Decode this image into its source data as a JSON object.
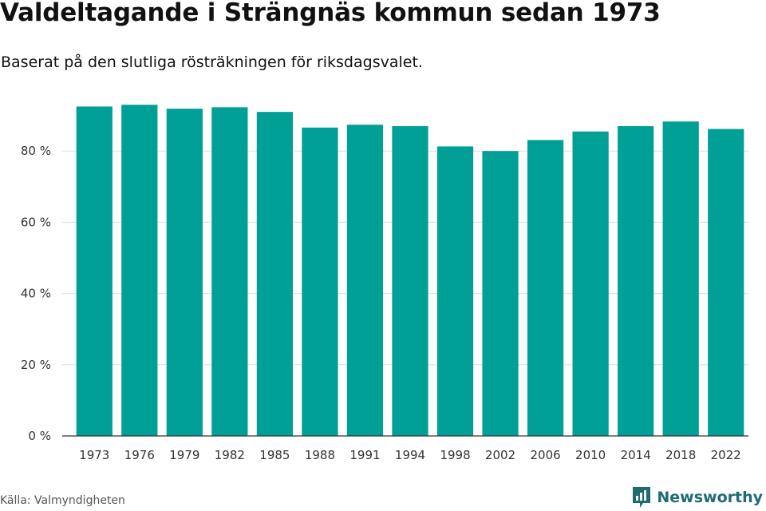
{
  "header": {
    "title": "Valdeltagande i Strängnäs kommun sedan 1973",
    "subtitle": "Baserat på den slutliga rösträkningen för riksdagsvalet."
  },
  "footer": {
    "source": "Källa: Valmyndigheten",
    "brand": "Newsworthy",
    "brand_icon": "newsworthy-logo-icon",
    "brand_color": "#1f6b74"
  },
  "chart_data": {
    "type": "bar",
    "title": "Valdeltagande i Strängnäs kommun sedan 1973",
    "subtitle": "Baserat på den slutliga rösträkningen för riksdagsvalet.",
    "xlabel": "",
    "ylabel": "",
    "categories": [
      "1973",
      "1976",
      "1979",
      "1982",
      "1985",
      "1988",
      "1991",
      "1994",
      "1998",
      "2002",
      "2006",
      "2010",
      "2014",
      "2018",
      "2022"
    ],
    "values": [
      92.5,
      93.0,
      91.9,
      92.3,
      91.0,
      86.6,
      87.4,
      87.0,
      81.3,
      80.0,
      83.1,
      85.5,
      87.0,
      88.3,
      86.2
    ],
    "ylim": [
      0,
      100
    ],
    "yticks": [
      0,
      20,
      40,
      60,
      80
    ],
    "ytick_labels": [
      "0 %",
      "20 %",
      "40 %",
      "60 %",
      "80 %"
    ],
    "grid": true,
    "bar_color": "#00a096"
  }
}
